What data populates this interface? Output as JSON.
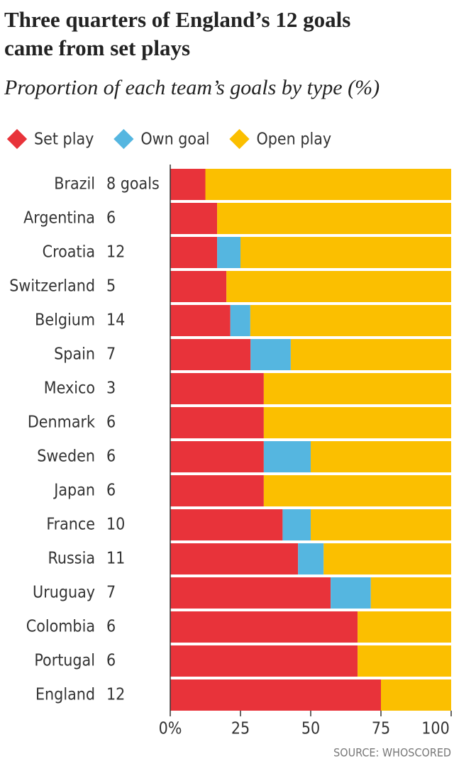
{
  "chart_data": {
    "type": "stacked-bar-horizontal",
    "title": "Three quarters of England’s 12 goals came from set plays",
    "subtitle": "Proportion of each team’s goals by type (%)",
    "source": "SOURCE: WHOSCORED",
    "categories": [
      "Brazil",
      "Argentina",
      "Croatia",
      "Switzerland",
      "Belgium",
      "Spain",
      "Mexico",
      "Denmark",
      "Sweden",
      "Japan",
      "France",
      "Russia",
      "Uruguay",
      "Colombia",
      "Portugal",
      "England"
    ],
    "goals": [
      {
        "value": 8,
        "label": "8 goals"
      },
      6,
      12,
      5,
      14,
      7,
      3,
      6,
      6,
      6,
      10,
      11,
      7,
      6,
      6,
      12
    ],
    "series": [
      {
        "name": "Set play",
        "color": "#e8333a",
        "values": [
          12.5,
          16.7,
          16.7,
          20,
          21.4,
          28.6,
          33.3,
          33.3,
          33.3,
          33.3,
          40,
          45.5,
          57.1,
          66.7,
          66.7,
          75
        ]
      },
      {
        "name": "Own goal",
        "color": "#55b6e0",
        "values": [
          0,
          0,
          8.3,
          0,
          7.1,
          14.3,
          0,
          0,
          16.7,
          0,
          10,
          9.1,
          14.3,
          0,
          0,
          0
        ]
      },
      {
        "name": "Open play",
        "color": "#fbbf00",
        "values": [
          87.5,
          83.3,
          75,
          80,
          71.5,
          57.1,
          66.7,
          66.7,
          50,
          66.7,
          50,
          45.4,
          28.6,
          33.3,
          33.3,
          25
        ]
      }
    ],
    "xlim": [
      0,
      100
    ],
    "xticks": [
      {
        "value": 0,
        "label": "0%"
      },
      25,
      50,
      75,
      100
    ]
  }
}
